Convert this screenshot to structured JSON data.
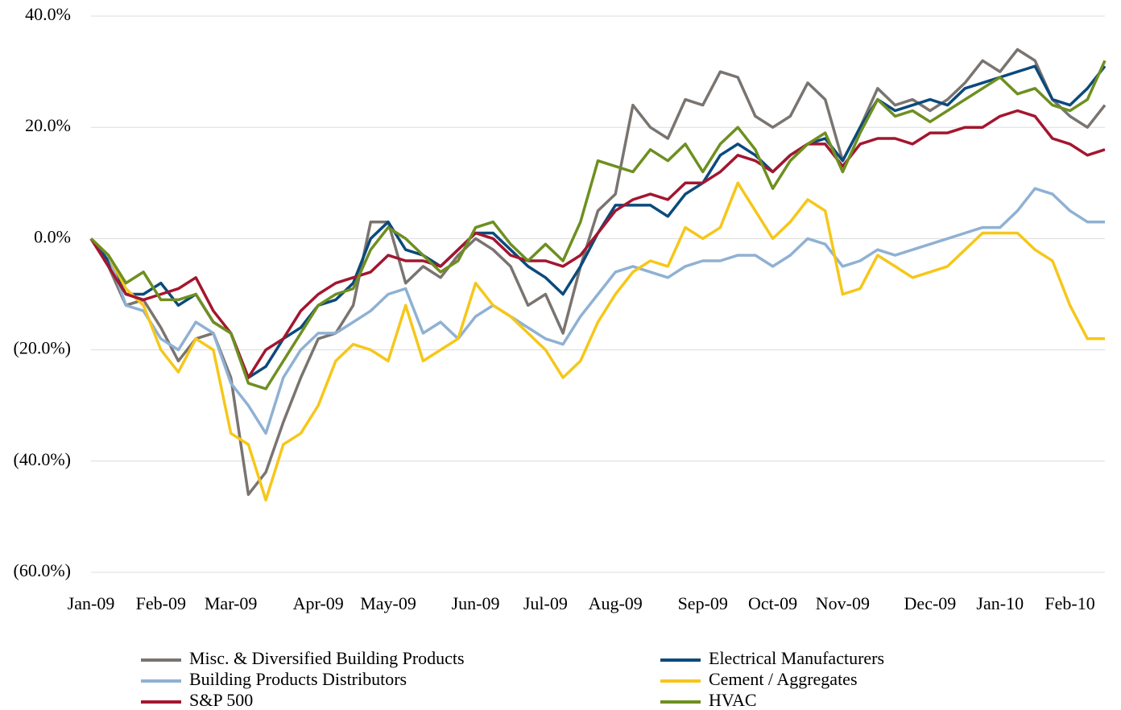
{
  "chart_data": {
    "type": "line",
    "categories": [
      "Jan-09",
      null,
      null,
      null,
      "Feb-09",
      null,
      null,
      null,
      "Mar-09",
      null,
      null,
      null,
      null,
      "Apr-09",
      null,
      null,
      null,
      "May-09",
      null,
      null,
      null,
      null,
      "Jun-09",
      null,
      null,
      null,
      "Jul-09",
      null,
      null,
      null,
      "Aug-09",
      null,
      null,
      null,
      null,
      "Sep-09",
      null,
      null,
      null,
      "Oct-09",
      null,
      null,
      null,
      "Nov-09",
      null,
      null,
      null,
      null,
      "Dec-09",
      null,
      null,
      null,
      "Jan-10",
      null,
      null,
      null,
      "Feb-10",
      null,
      null
    ],
    "ylim": [
      -60,
      40
    ],
    "yticks": [
      {
        "value": -60,
        "label": "(60.0%)"
      },
      {
        "value": -40,
        "label": "(40.0%)"
      },
      {
        "value": -20,
        "label": "(20.0%)"
      },
      {
        "value": 0,
        "label": "0.0%"
      },
      {
        "value": 20,
        "label": "20.0%"
      },
      {
        "value": 40,
        "label": "40.0%"
      }
    ],
    "grid": true,
    "legend": "bottom",
    "series": [
      {
        "name": "Misc. & Diversified Building Products",
        "color": "#7a7470",
        "values": [
          0,
          -5,
          -12,
          -11,
          -16,
          -22,
          -18,
          -17,
          -25,
          -46,
          -42,
          -33,
          -25,
          -18,
          -17,
          -12,
          3,
          3,
          -8,
          -5,
          -7,
          -3,
          0,
          -2,
          -5,
          -12,
          -10,
          -17,
          -5,
          5,
          8,
          24,
          20,
          18,
          25,
          24,
          30,
          29,
          22,
          20,
          22,
          28,
          25,
          14,
          20,
          27,
          24,
          25,
          23,
          25,
          28,
          32,
          30,
          34,
          32,
          25,
          22,
          20,
          24
        ]
      },
      {
        "name": "Electrical Manufacturers",
        "color": "#0b4a7c",
        "values": [
          0,
          -4,
          -10,
          -10,
          -8,
          -12,
          -10,
          -15,
          -17,
          -25,
          -23,
          -18,
          -16,
          -12,
          -11,
          -8,
          0,
          3,
          -2,
          -3,
          -5,
          -2,
          1,
          1,
          -2,
          -5,
          -7,
          -10,
          -5,
          1,
          6,
          6,
          6,
          4,
          8,
          10,
          15,
          17,
          15,
          12,
          15,
          17,
          18,
          14,
          20,
          25,
          23,
          24,
          25,
          24,
          27,
          28,
          29,
          30,
          31,
          25,
          24,
          27,
          31
        ]
      },
      {
        "name": "Building Products Distributors",
        "color": "#8fb1d3",
        "values": [
          0,
          -3,
          -12,
          -13,
          -18,
          -20,
          -15,
          -17,
          -26,
          -30,
          -35,
          -25,
          -20,
          -17,
          -17,
          -15,
          -13,
          -10,
          -9,
          -17,
          -15,
          -18,
          -14,
          -12,
          -14,
          -16,
          -18,
          -19,
          -14,
          -10,
          -6,
          -5,
          -6,
          -7,
          -5,
          -4,
          -4,
          -3,
          -3,
          -5,
          -3,
          0,
          -1,
          -5,
          -4,
          -2,
          -3,
          -2,
          -1,
          0,
          1,
          2,
          2,
          5,
          9,
          8,
          5,
          3,
          3
        ]
      },
      {
        "name": "Cement / Aggregates",
        "color": "#f6c71a",
        "values": [
          0,
          -3,
          -9,
          -12,
          -20,
          -24,
          -18,
          -20,
          -35,
          -37,
          -47,
          -37,
          -35,
          -30,
          -22,
          -19,
          -20,
          -22,
          -12,
          -22,
          -20,
          -18,
          -8,
          -12,
          -14,
          -17,
          -20,
          -25,
          -22,
          -15,
          -10,
          -6,
          -4,
          -5,
          2,
          0,
          2,
          10,
          5,
          0,
          3,
          7,
          5,
          -10,
          -9,
          -3,
          -5,
          -7,
          -6,
          -5,
          -2,
          1,
          1,
          1,
          -2,
          -4,
          -12,
          -18,
          -18
        ]
      },
      {
        "name": "S&P 500",
        "color": "#a3162f",
        "values": [
          0,
          -5,
          -10,
          -11,
          -10,
          -9,
          -7,
          -13,
          -17,
          -25,
          -20,
          -18,
          -13,
          -10,
          -8,
          -7,
          -6,
          -3,
          -4,
          -4,
          -5,
          -2,
          1,
          0,
          -3,
          -4,
          -4,
          -5,
          -3,
          1,
          5,
          7,
          8,
          7,
          10,
          10,
          12,
          15,
          14,
          12,
          15,
          17,
          17,
          13,
          17,
          18,
          18,
          17,
          19,
          19,
          20,
          20,
          22,
          23,
          22,
          18,
          17,
          15,
          16
        ]
      },
      {
        "name": "HVAC",
        "color": "#6e8f20",
        "values": [
          0,
          -3,
          -8,
          -6,
          -11,
          -11,
          -10,
          -15,
          -17,
          -26,
          -27,
          -22,
          -17,
          -12,
          -10,
          -9,
          -2,
          2,
          0,
          -3,
          -6,
          -4,
          2,
          3,
          -1,
          -4,
          -1,
          -4,
          3,
          14,
          13,
          12,
          16,
          14,
          17,
          12,
          17,
          20,
          16,
          9,
          14,
          17,
          19,
          12,
          19,
          25,
          22,
          23,
          21,
          23,
          25,
          27,
          29,
          26,
          27,
          24,
          23,
          25,
          32
        ]
      }
    ]
  }
}
